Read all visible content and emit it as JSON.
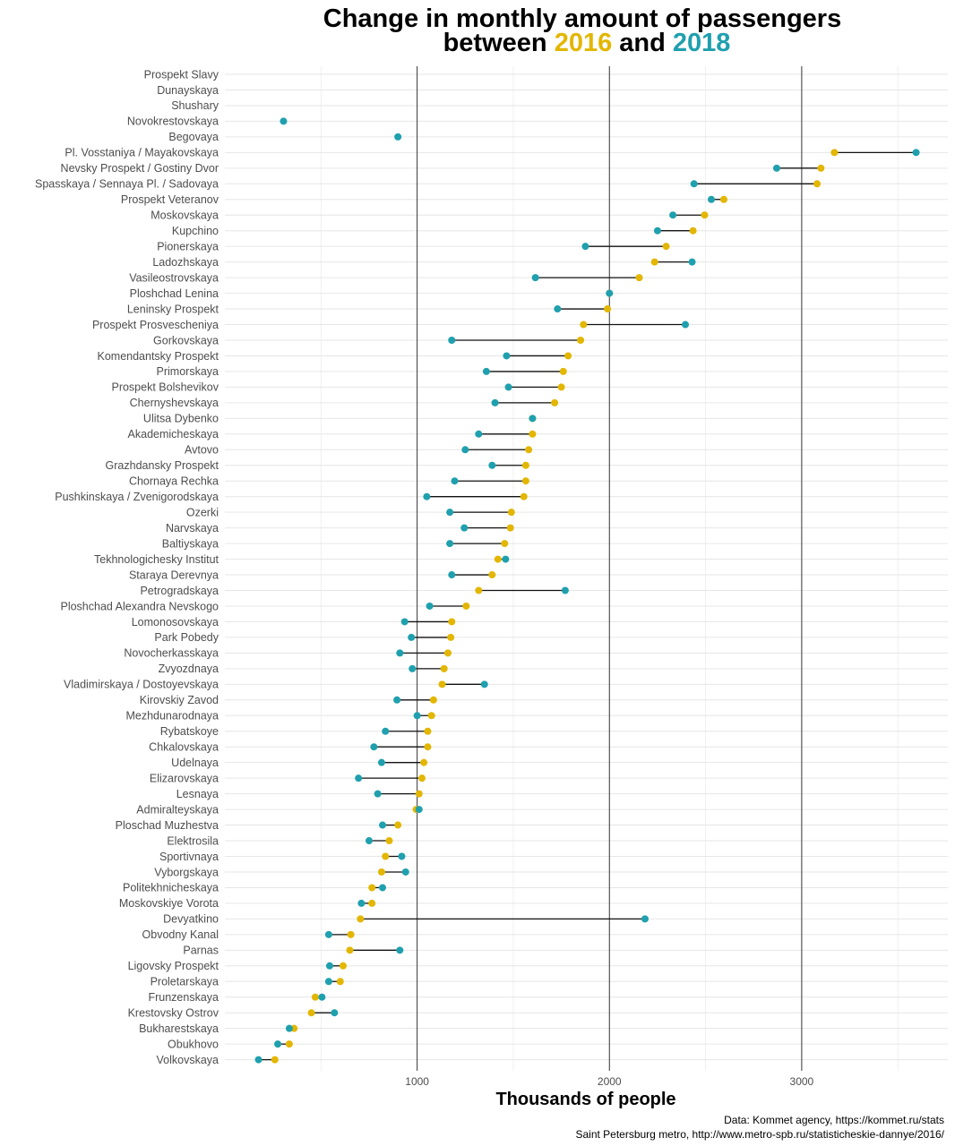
{
  "chart_data": {
    "type": "dumbbell",
    "title_line1": "Change in monthly amount of passengers",
    "title_line2_parts": [
      "between ",
      "2016",
      " and ",
      "2018"
    ],
    "xlabel": "Thousands of people",
    "xlim": [
      0,
      3760
    ],
    "xticks": [
      1000,
      2000,
      3000
    ],
    "series": [
      {
        "name": "2016",
        "color": "#E3B600"
      },
      {
        "name": "2018",
        "color": "#1FA0AE"
      }
    ],
    "captions": [
      "Data: Kommet agency, https://kommet.ru/stats",
      "Saint Petersburg metro, http://www.metro-spb.ru/statisticheskie-dannye/2016/"
    ],
    "stations": [
      {
        "name": "Prospekt Slavy",
        "y2016": null,
        "y2018": null
      },
      {
        "name": "Dunayskaya",
        "y2016": null,
        "y2018": null
      },
      {
        "name": "Shushary",
        "y2016": null,
        "y2018": null
      },
      {
        "name": "Novokrestovskaya",
        "y2016": null,
        "y2018": 305
      },
      {
        "name": "Begovaya",
        "y2016": null,
        "y2018": 900
      },
      {
        "name": "Pl. Vosstaniya / Mayakovskaya",
        "y2016": 3170,
        "y2018": 3595
      },
      {
        "name": "Nevsky Prospekt / Gostiny Dvor",
        "y2016": 3100,
        "y2018": 2870
      },
      {
        "name": "Spasskaya / Sennaya Pl. / Sadovaya",
        "y2016": 3080,
        "y2018": 2440
      },
      {
        "name": "Prospekt Veteranov",
        "y2016": 2595,
        "y2018": 2530
      },
      {
        "name": "Moskovskaya",
        "y2016": 2495,
        "y2018": 2330
      },
      {
        "name": "Kupchino",
        "y2016": 2435,
        "y2018": 2250
      },
      {
        "name": "Pionerskaya",
        "y2016": 2295,
        "y2018": 1875
      },
      {
        "name": "Ladozhskaya",
        "y2016": 2235,
        "y2018": 2430
      },
      {
        "name": "Vasileostrovskaya",
        "y2016": 2155,
        "y2018": 1615
      },
      {
        "name": "Ploshchad Lenina",
        "y2016": 2000,
        "y2018": 2000
      },
      {
        "name": "Leninsky Prospekt",
        "y2016": 1990,
        "y2018": 1730
      },
      {
        "name": "Prospekt Prosvescheniya",
        "y2016": 1865,
        "y2018": 2395
      },
      {
        "name": "Gorkovskaya",
        "y2016": 1850,
        "y2018": 1180
      },
      {
        "name": "Komendantsky Prospekt",
        "y2016": 1785,
        "y2018": 1465
      },
      {
        "name": "Primorskaya",
        "y2016": 1760,
        "y2018": 1360
      },
      {
        "name": "Prospekt Bolshevikov",
        "y2016": 1750,
        "y2018": 1475
      },
      {
        "name": "Chernyshevskaya",
        "y2016": 1715,
        "y2018": 1405
      },
      {
        "name": "Ulitsa Dybenko",
        "y2016": 1600,
        "y2018": 1600
      },
      {
        "name": "Akademicheskaya",
        "y2016": 1600,
        "y2018": 1320
      },
      {
        "name": "Avtovo",
        "y2016": 1580,
        "y2018": 1250
      },
      {
        "name": "Grazhdansky Prospekt",
        "y2016": 1565,
        "y2018": 1390
      },
      {
        "name": "Chornaya Rechka",
        "y2016": 1565,
        "y2018": 1195
      },
      {
        "name": "Pushkinskaya / Zvenigorodskaya",
        "y2016": 1555,
        "y2018": 1050
      },
      {
        "name": "Ozerki",
        "y2016": 1490,
        "y2018": 1170
      },
      {
        "name": "Narvskaya",
        "y2016": 1485,
        "y2018": 1245
      },
      {
        "name": "Baltiyskaya",
        "y2016": 1455,
        "y2018": 1170
      },
      {
        "name": "Tekhnologichesky Institut",
        "y2016": 1420,
        "y2018": 1460
      },
      {
        "name": "Staraya Derevnya",
        "y2016": 1390,
        "y2018": 1180
      },
      {
        "name": "Petrogradskaya",
        "y2016": 1320,
        "y2018": 1770
      },
      {
        "name": "Ploshchad Alexandra Nevskogo",
        "y2016": 1255,
        "y2018": 1065
      },
      {
        "name": "Lomonosovskaya",
        "y2016": 1180,
        "y2018": 935
      },
      {
        "name": "Park Pobedy",
        "y2016": 1175,
        "y2018": 970
      },
      {
        "name": "Novocherkasskaya",
        "y2016": 1160,
        "y2018": 910
      },
      {
        "name": "Zvyozdnaya",
        "y2016": 1140,
        "y2018": 975
      },
      {
        "name": "Vladimirskaya / Dostoyevskaya",
        "y2016": 1130,
        "y2018": 1350
      },
      {
        "name": "Kirovskiy Zavod",
        "y2016": 1085,
        "y2018": 895
      },
      {
        "name": "Mezhdunarodnaya",
        "y2016": 1075,
        "y2018": 1000
      },
      {
        "name": "Rybatskoye",
        "y2016": 1055,
        "y2018": 835
      },
      {
        "name": "Chkalovskaya",
        "y2016": 1055,
        "y2018": 775
      },
      {
        "name": "Udelnaya",
        "y2016": 1035,
        "y2018": 815
      },
      {
        "name": "Elizarovskaya",
        "y2016": 1025,
        "y2018": 695
      },
      {
        "name": "Lesnaya",
        "y2016": 1010,
        "y2018": 795
      },
      {
        "name": "Admiralteyskaya",
        "y2016": 995,
        "y2018": 1010
      },
      {
        "name": "Ploschad Muzhestva",
        "y2016": 900,
        "y2018": 820
      },
      {
        "name": "Elektrosila",
        "y2016": 855,
        "y2018": 750
      },
      {
        "name": "Sportivnaya",
        "y2016": 835,
        "y2018": 920
      },
      {
        "name": "Vyborgskaya",
        "y2016": 815,
        "y2018": 940
      },
      {
        "name": "Politekhnicheskaya",
        "y2016": 765,
        "y2018": 820
      },
      {
        "name": "Moskovskiye Vorota",
        "y2016": 765,
        "y2018": 710
      },
      {
        "name": "Devyatkino",
        "y2016": 705,
        "y2018": 2185
      },
      {
        "name": "Obvodny Kanal",
        "y2016": 655,
        "y2018": 540
      },
      {
        "name": "Parnas",
        "y2016": 650,
        "y2018": 910
      },
      {
        "name": "Ligovsky Prospekt",
        "y2016": 615,
        "y2018": 545
      },
      {
        "name": "Proletarskaya",
        "y2016": 600,
        "y2018": 540
      },
      {
        "name": "Frunzenskaya",
        "y2016": 470,
        "y2018": 505
      },
      {
        "name": "Krestovsky Ostrov",
        "y2016": 450,
        "y2018": 570
      },
      {
        "name": "Bukharestskaya",
        "y2016": 360,
        "y2018": 335
      },
      {
        "name": "Obukhovo",
        "y2016": 335,
        "y2018": 275
      },
      {
        "name": "Volkovskaya",
        "y2016": 260,
        "y2018": 175
      }
    ]
  }
}
